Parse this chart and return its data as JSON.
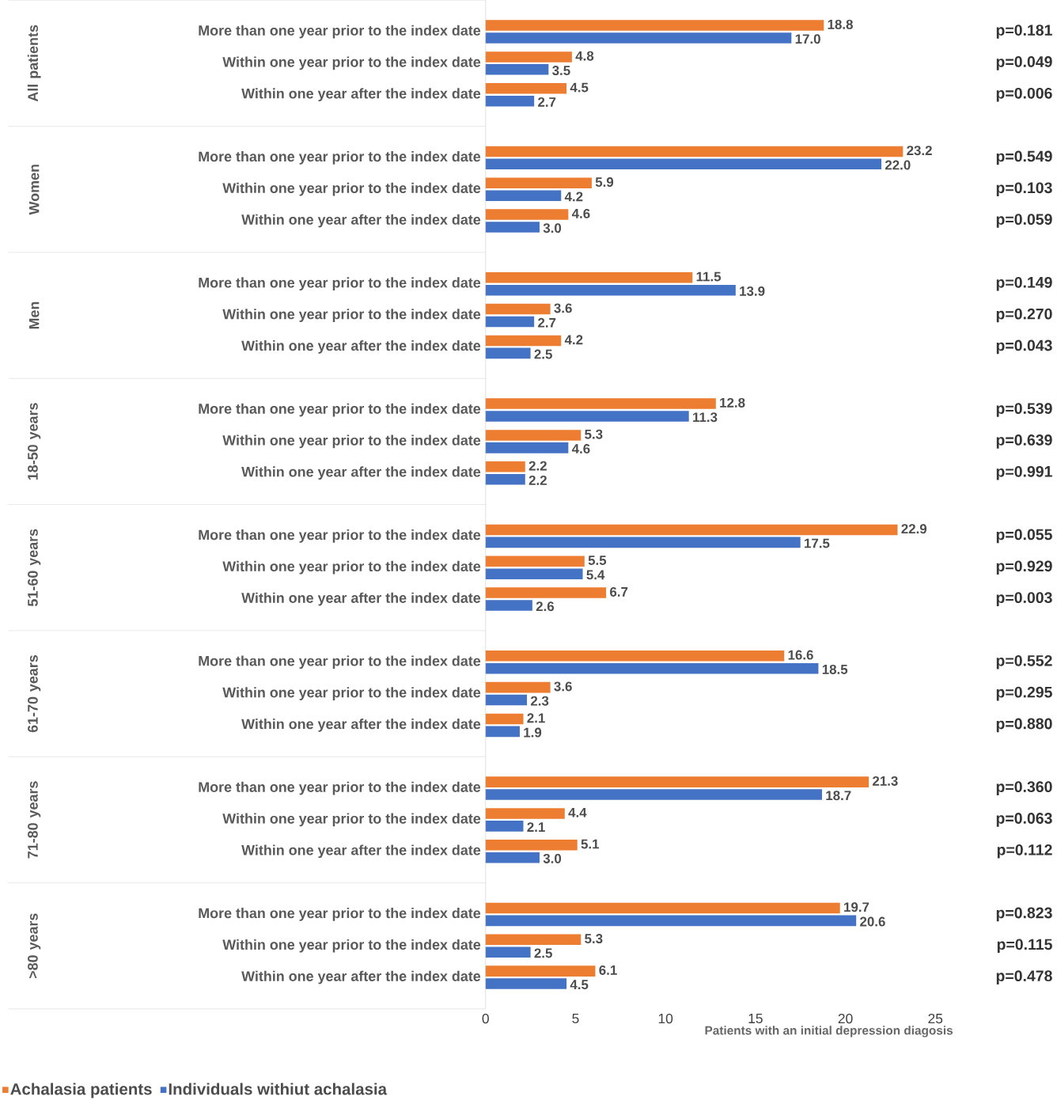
{
  "chart_data": {
    "type": "bar",
    "orientation": "horizontal",
    "categories": [
      "More than one year prior to the index date",
      "Within one year prior to the index date",
      "Within one year after the index date",
      "More than one year prior to the index date",
      "Within one year prior to the index date",
      "Within one year after the index date",
      "More than one year prior to the index date",
      "Within one year prior to the index date",
      "Within one year after the index date",
      "More than one year prior to the index date",
      "Within one year prior to the index date",
      "Within one year after the index date",
      "More than one year prior to the index date",
      "Within one year prior to the index date",
      "Within one year after the index date",
      "More than one year prior to the index date",
      "Within one year prior to the index date",
      "Within one year after the index date",
      "More than one year prior to the index date",
      "Within one year prior to the index date",
      "Within one year after the index date",
      "More than one year prior to the index date",
      "Within one year prior to the index date",
      "Within one year after the index date"
    ],
    "series": [
      {
        "name": "Achalasia patients",
        "color": "#ed7d31",
        "values": [
          18.8,
          4.8,
          4.5,
          23.2,
          5.9,
          4.6,
          11.5,
          3.6,
          4.2,
          12.8,
          5.3,
          2.2,
          22.9,
          5.5,
          6.7,
          16.6,
          3.6,
          2.1,
          21.3,
          4.4,
          5.1,
          19.7,
          5.3,
          6.1
        ],
        "value_labels": [
          "18.8",
          "4.8",
          "4.5",
          "23.2",
          "5.9",
          "4.6",
          "11.5",
          "3.6",
          "4.2",
          "12.8",
          "5.3",
          "2.2",
          "22.9",
          "5.5",
          "6.7",
          "16.6",
          "3.6",
          "2.1",
          "21.3",
          "4.4",
          "5.1",
          "19.7",
          "5.3",
          "6.1"
        ]
      },
      {
        "name": "Individuals withiut achalasia",
        "color": "#4472c4",
        "values": [
          17.0,
          3.5,
          2.7,
          22.0,
          4.2,
          3.0,
          13.9,
          2.7,
          2.5,
          11.3,
          4.6,
          2.2,
          17.5,
          5.4,
          2.6,
          18.5,
          2.3,
          1.9,
          18.7,
          2.1,
          3.0,
          20.6,
          2.5,
          4.5
        ],
        "value_labels": [
          "17.0",
          "3.5",
          "2.7",
          "22.0",
          "4.2",
          "3.0",
          "13.9",
          "2.7",
          "2.5",
          "11.3",
          "4.6",
          "2.2",
          "17.5",
          "5.4",
          "2.6",
          "18.5",
          "2.3",
          "1.9",
          "18.7",
          "2.1",
          "3.0",
          "20.6",
          "2.5",
          "4.5"
        ]
      }
    ],
    "xlim": [
      0,
      25
    ],
    "xticks": [
      0,
      5,
      10,
      15,
      20,
      25
    ],
    "xlabel": "Patients with an initial depression diagosis",
    "legend": "bottom left",
    "grid": false,
    "annotations": [
      "All patients",
      "Women",
      "Men",
      "18-50 years",
      "51-60 years",
      "61-70 years",
      "71-80 years",
      ">80 years",
      "p=0.181",
      "p=0.049",
      "p=0.006",
      "p=0.549",
      "p=0.103",
      "p=0.059",
      "p=0.149",
      "p=0.270",
      "p=0.043",
      "p=0.539",
      "p=0.639",
      "p=0.991",
      "p=0.055",
      "p=0.929",
      "p=0.003",
      "p=0.552",
      "p=0.295",
      "p=0.880",
      "p=0.360",
      "p=0.063",
      "p=0.112",
      "p=0.823",
      "p=0.115",
      "p=0.478"
    ]
  }
}
